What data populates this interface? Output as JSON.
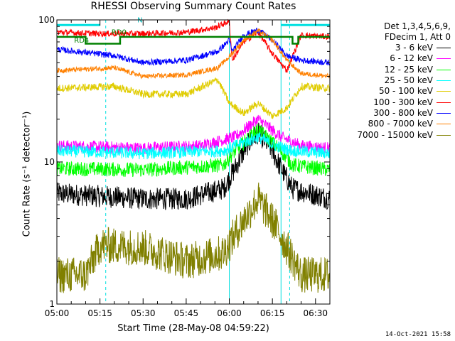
{
  "chart_data": {
    "type": "line",
    "title": "RHESSI Observing Summary Count Rates",
    "xlabel": "Start Time (28-May-08 04:59:22)",
    "ylabel": "Count Rate (s⁻¹ detector⁻¹)",
    "y_scale": "log",
    "ylim": [
      1,
      100
    ],
    "yticks": [
      "1",
      "10",
      "100"
    ],
    "x_time_range": [
      "05:00",
      "06:35"
    ],
    "xticks": [
      "05:00",
      "05:15",
      "05:30",
      "05:45",
      "06:00",
      "06:15",
      "06:30"
    ],
    "legend": {
      "placement": "right",
      "header": [
        "Det 1,3,4,5,6,9,",
        "FDecim 1, Att 0"
      ],
      "entries": [
        "3 - 6 keV",
        "6 - 12 keV",
        "12 - 25 keV",
        "25 - 50 keV",
        "50 - 100 keV",
        "100 - 300 keV",
        "300 - 800 keV",
        "800 - 7000 keV",
        "7000 - 15000 keV"
      ]
    },
    "annotations": [
      "N",
      "RD0",
      "RD4"
    ],
    "flag_lines": {
      "solid_cyan_times": [
        "05:00",
        "06:00",
        "06:18"
      ],
      "dashed_cyan_times": [
        "05:17",
        "06:21",
        "06:35"
      ],
      "olive_transition_times": [
        "05:11",
        "05:22"
      ]
    },
    "series": [
      {
        "name": "3 - 6 keV",
        "color": "#000000",
        "noise": 0.18,
        "points": [
          [
            "05:00",
            6.0
          ],
          [
            "05:30",
            5.5
          ],
          [
            "05:45",
            5.5
          ],
          [
            "05:58",
            6.5
          ],
          [
            "06:02",
            9.0
          ],
          [
            "06:06",
            13.0
          ],
          [
            "06:10",
            16.0
          ],
          [
            "06:14",
            13.0
          ],
          [
            "06:18",
            9.0
          ],
          [
            "06:22",
            6.5
          ],
          [
            "06:35",
            5.5
          ]
        ]
      },
      {
        "name": "6 - 12 keV",
        "color": "#ff00ff",
        "noise": 0.1,
        "points": [
          [
            "05:00",
            13.0
          ],
          [
            "05:30",
            12.5
          ],
          [
            "05:50",
            13.0
          ],
          [
            "06:02",
            15.0
          ],
          [
            "06:10",
            20.0
          ],
          [
            "06:18",
            15.0
          ],
          [
            "06:25",
            13.0
          ],
          [
            "06:35",
            12.5
          ]
        ]
      },
      {
        "name": "12 - 25 keV",
        "color": "#00ff00",
        "noise": 0.12,
        "points": [
          [
            "05:00",
            9.0
          ],
          [
            "05:30",
            8.8
          ],
          [
            "05:58",
            9.5
          ],
          [
            "06:02",
            12.0
          ],
          [
            "06:10",
            17.0
          ],
          [
            "06:18",
            12.0
          ],
          [
            "06:22",
            9.5
          ],
          [
            "06:35",
            8.8
          ]
        ]
      },
      {
        "name": "25 - 50 keV",
        "color": "#00ffff",
        "noise": 0.1,
        "points": [
          [
            "05:00",
            12.0
          ],
          [
            "05:30",
            11.5
          ],
          [
            "05:58",
            12.0
          ],
          [
            "06:04",
            13.5
          ],
          [
            "06:10",
            15.0
          ],
          [
            "06:16",
            13.0
          ],
          [
            "06:22",
            12.0
          ],
          [
            "06:35",
            11.5
          ]
        ]
      },
      {
        "name": "50 - 100 keV",
        "color": "#e0cc00",
        "noise": 0.06,
        "points": [
          [
            "05:00",
            33.0
          ],
          [
            "05:20",
            34.0
          ],
          [
            "05:30",
            30.0
          ],
          [
            "05:45",
            30.0
          ],
          [
            "05:56",
            38.0
          ],
          [
            "06:00",
            26.0
          ],
          [
            "06:05",
            22.0
          ],
          [
            "06:10",
            26.0
          ],
          [
            "06:15",
            21.0
          ],
          [
            "06:20",
            24.0
          ],
          [
            "06:25",
            34.0
          ],
          [
            "06:35",
            33.0
          ]
        ]
      },
      {
        "name": "100 - 300 keV",
        "color": "#ff0000",
        "noise": 0.05,
        "points": [
          [
            "05:00",
            82.0
          ],
          [
            "05:15",
            80.0
          ],
          [
            "05:30",
            80.0
          ],
          [
            "05:45",
            82.0
          ],
          [
            "05:55",
            88.0
          ],
          [
            "06:00",
            98.0
          ],
          [
            "06:01",
            52.0
          ],
          [
            "06:05",
            70.0
          ],
          [
            "06:10",
            82.0
          ],
          [
            "06:15",
            58.0
          ],
          [
            "06:20",
            44.0
          ],
          [
            "06:25",
            78.0
          ],
          [
            "06:35",
            76.0
          ]
        ]
      },
      {
        "name": "300 - 800 keV",
        "color": "#0000ff",
        "noise": 0.05,
        "points": [
          [
            "05:00",
            62.0
          ],
          [
            "05:20",
            56.0
          ],
          [
            "05:30",
            50.0
          ],
          [
            "05:45",
            52.0
          ],
          [
            "05:56",
            60.0
          ],
          [
            "06:00",
            72.0
          ],
          [
            "06:01",
            60.0
          ],
          [
            "06:05",
            78.0
          ],
          [
            "06:10",
            85.0
          ],
          [
            "06:15",
            72.0
          ],
          [
            "06:20",
            56.0
          ],
          [
            "06:25",
            52.0
          ],
          [
            "06:35",
            50.0
          ]
        ]
      },
      {
        "name": "800 - 7000 keV",
        "color": "#ff8000",
        "noise": 0.04,
        "points": [
          [
            "05:00",
            44.0
          ],
          [
            "05:20",
            46.0
          ],
          [
            "05:30",
            40.0
          ],
          [
            "05:45",
            41.0
          ],
          [
            "05:56",
            46.0
          ],
          [
            "06:00",
            55.0
          ],
          [
            "06:05",
            72.0
          ],
          [
            "06:10",
            84.0
          ],
          [
            "06:15",
            72.0
          ],
          [
            "06:20",
            52.0
          ],
          [
            "06:25",
            42.0
          ],
          [
            "06:35",
            40.0
          ]
        ]
      },
      {
        "name": "7000 - 15000 keV",
        "color": "#808000",
        "noise": 0.3,
        "points": [
          [
            "05:00",
            1.6
          ],
          [
            "05:10",
            1.6
          ],
          [
            "05:15",
            2.6
          ],
          [
            "05:30",
            2.5
          ],
          [
            "05:45",
            2.0
          ],
          [
            "05:58",
            2.3
          ],
          [
            "06:04",
            3.6
          ],
          [
            "06:10",
            5.5
          ],
          [
            "06:16",
            3.6
          ],
          [
            "06:20",
            2.5
          ],
          [
            "06:25",
            1.6
          ],
          [
            "06:35",
            1.6
          ]
        ]
      }
    ],
    "mode_levels": [
      {
        "name": "RD0",
        "color": "#008000",
        "level": 75.0,
        "breaks": [
          [
            "05:00",
            76.0
          ],
          [
            "05:10",
            68.0
          ],
          [
            "05:17",
            68.0
          ],
          [
            "05:22",
            76.0
          ],
          [
            "06:20",
            76.0
          ],
          [
            "06:22",
            68.0
          ],
          [
            "06:24",
            76.0
          ],
          [
            "06:35",
            76.0
          ]
        ]
      }
    ]
  },
  "timestamp": "14-Oct-2021 15:58"
}
